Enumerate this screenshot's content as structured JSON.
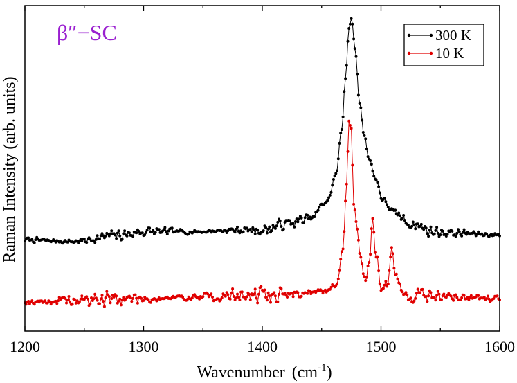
{
  "chart_data": {
    "type": "line",
    "title": "",
    "annotation": "β″−SC",
    "annotation_color": "#9a1fd0",
    "xlabel": "Wavenumber",
    "xlabel_unit": "(cm",
    "xlabel_unit_exp": "-1",
    "xlabel_unit_close": ")",
    "ylabel": "Raman Intensity (arb. units)",
    "xlim": [
      1200,
      1600
    ],
    "ylim": [
      0,
      1
    ],
    "x_ticks": [
      1200,
      1300,
      1400,
      1500,
      1600
    ],
    "x_tick_labels": [
      "1200",
      "1300",
      "1400",
      "1500",
      "1600"
    ],
    "y_ticks_labeled": false,
    "legend_position": "top-right",
    "series": [
      {
        "name": "300 K",
        "color": "#000000",
        "baseline": 0.285,
        "noise": 0.014,
        "seed": 7,
        "points": [
          [
            1200,
            0.28
          ],
          [
            1240,
            0.275
          ],
          [
            1280,
            0.295
          ],
          [
            1300,
            0.305
          ],
          [
            1340,
            0.305
          ],
          [
            1380,
            0.31
          ],
          [
            1400,
            0.31
          ],
          [
            1420,
            0.33
          ],
          [
            1440,
            0.345
          ],
          [
            1455,
            0.4
          ],
          [
            1462,
            0.48
          ],
          [
            1467,
            0.62
          ],
          [
            1470,
            0.78
          ],
          [
            1473,
            0.93
          ],
          [
            1475,
            0.96
          ],
          [
            1478,
            0.87
          ],
          [
            1482,
            0.7
          ],
          [
            1486,
            0.6
          ],
          [
            1490,
            0.53
          ],
          [
            1495,
            0.47
          ],
          [
            1502,
            0.4
          ],
          [
            1512,
            0.36
          ],
          [
            1525,
            0.33
          ],
          [
            1545,
            0.305
          ],
          [
            1570,
            0.3
          ],
          [
            1600,
            0.295
          ]
        ]
      },
      {
        "name": "10 K",
        "color": "#e00000",
        "baseline": 0.095,
        "noise": 0.02,
        "seed": 19,
        "points": [
          [
            1200,
            0.09
          ],
          [
            1300,
            0.1
          ],
          [
            1400,
            0.11
          ],
          [
            1450,
            0.12
          ],
          [
            1462,
            0.14
          ],
          [
            1468,
            0.25
          ],
          [
            1471,
            0.45
          ],
          [
            1473,
            0.65
          ],
          [
            1475,
            0.62
          ],
          [
            1477,
            0.4
          ],
          [
            1480,
            0.3
          ],
          [
            1483,
            0.22
          ],
          [
            1487,
            0.16
          ],
          [
            1490,
            0.22
          ],
          [
            1493,
            0.34
          ],
          [
            1496,
            0.22
          ],
          [
            1500,
            0.13
          ],
          [
            1505,
            0.15
          ],
          [
            1509,
            0.26
          ],
          [
            1512,
            0.18
          ],
          [
            1518,
            0.11
          ],
          [
            1600,
            0.1
          ]
        ]
      }
    ]
  }
}
